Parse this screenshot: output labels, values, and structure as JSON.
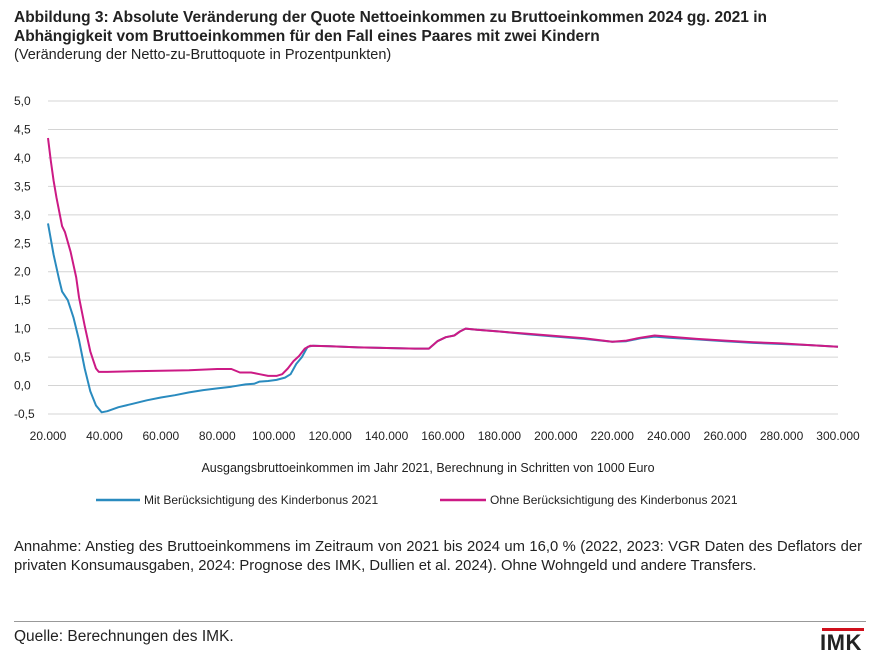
{
  "header": {
    "title": "Abbildung 3: Absolute Veränderung der Quote Nettoeinkommen zu Bruttoeinkommen 2024 gg. 2021 in Abhängigkeit vom Bruttoeinkommen für den Fall eines Paares mit zwei Kindern",
    "subtitle": "(Veränderung der Netto-zu-Bruttoquote in Prozentpunkten)"
  },
  "chart_data": {
    "type": "line",
    "xlabel": "Ausgangsbruttoeinkommen im Jahr 2021, Berechnung in Schritten von 1000 Euro",
    "ylabel": "",
    "xlim": [
      20000,
      300000
    ],
    "ylim": [
      -0.5,
      5.0
    ],
    "grid": "horizontal",
    "legend_position": "bottom",
    "x_ticks": [
      20000,
      40000,
      60000,
      80000,
      100000,
      120000,
      140000,
      160000,
      180000,
      200000,
      220000,
      240000,
      260000,
      280000,
      300000
    ],
    "x_tick_labels": [
      "20.000",
      "40.000",
      "60.000",
      "80.000",
      "100.000",
      "120.000",
      "140.000",
      "160.000",
      "180.000",
      "200.000",
      "220.000",
      "240.000",
      "260.000",
      "280.000",
      "300.000"
    ],
    "y_ticks": [
      -0.5,
      0.0,
      0.5,
      1.0,
      1.5,
      2.0,
      2.5,
      3.0,
      3.5,
      4.0,
      4.5,
      5.0
    ],
    "y_tick_labels": [
      "-0,5",
      "0,0",
      "0,5",
      "1,0",
      "1,5",
      "2,0",
      "2,5",
      "3,0",
      "3,5",
      "4,0",
      "4,5",
      "5,0"
    ],
    "series": [
      {
        "name": "Mit Berücksichtigung des Kinderbonus 2021",
        "color": "#2a8bbf",
        "points": [
          [
            20000,
            2.85
          ],
          [
            22000,
            2.3
          ],
          [
            24000,
            1.85
          ],
          [
            25000,
            1.65
          ],
          [
            27000,
            1.5
          ],
          [
            29000,
            1.2
          ],
          [
            31000,
            0.8
          ],
          [
            33000,
            0.3
          ],
          [
            35000,
            -0.1
          ],
          [
            37000,
            -0.35
          ],
          [
            39000,
            -0.47
          ],
          [
            41000,
            -0.45
          ],
          [
            45000,
            -0.38
          ],
          [
            50000,
            -0.32
          ],
          [
            55000,
            -0.26
          ],
          [
            60000,
            -0.21
          ],
          [
            65000,
            -0.17
          ],
          [
            70000,
            -0.12
          ],
          [
            75000,
            -0.08
          ],
          [
            80000,
            -0.05
          ],
          [
            85000,
            -0.02
          ],
          [
            90000,
            0.02
          ],
          [
            93000,
            0.03
          ],
          [
            95000,
            0.07
          ],
          [
            98000,
            0.08
          ],
          [
            101000,
            0.1
          ],
          [
            104000,
            0.14
          ],
          [
            106000,
            0.2
          ],
          [
            108000,
            0.38
          ],
          [
            110000,
            0.5
          ],
          [
            112000,
            0.68
          ],
          [
            114000,
            0.7
          ],
          [
            120000,
            0.69
          ],
          [
            130000,
            0.67
          ],
          [
            140000,
            0.66
          ],
          [
            150000,
            0.65
          ],
          [
            155000,
            0.65
          ],
          [
            158000,
            0.78
          ],
          [
            161000,
            0.85
          ],
          [
            164000,
            0.88
          ],
          [
            166000,
            0.95
          ],
          [
            168000,
            1.0
          ],
          [
            172000,
            0.98
          ],
          [
            180000,
            0.95
          ],
          [
            190000,
            0.9
          ],
          [
            200000,
            0.86
          ],
          [
            210000,
            0.82
          ],
          [
            220000,
            0.77
          ],
          [
            225000,
            0.78
          ],
          [
            230000,
            0.83
          ],
          [
            235000,
            0.86
          ],
          [
            240000,
            0.84
          ],
          [
            250000,
            0.81
          ],
          [
            260000,
            0.78
          ],
          [
            270000,
            0.75
          ],
          [
            280000,
            0.73
          ],
          [
            290000,
            0.71
          ],
          [
            300000,
            0.68
          ]
        ]
      },
      {
        "name": "Ohne Berücksichtigung des Kinderbonus 2021",
        "color": "#cc1a85",
        "points": [
          [
            20000,
            4.35
          ],
          [
            21000,
            3.95
          ],
          [
            22000,
            3.6
          ],
          [
            23000,
            3.3
          ],
          [
            25000,
            2.8
          ],
          [
            26000,
            2.7
          ],
          [
            28000,
            2.35
          ],
          [
            30000,
            1.9
          ],
          [
            31000,
            1.55
          ],
          [
            33000,
            1.05
          ],
          [
            35000,
            0.6
          ],
          [
            36000,
            0.45
          ],
          [
            37000,
            0.3
          ],
          [
            38000,
            0.24
          ],
          [
            41000,
            0.24
          ],
          [
            50000,
            0.25
          ],
          [
            60000,
            0.26
          ],
          [
            70000,
            0.27
          ],
          [
            80000,
            0.29
          ],
          [
            85000,
            0.29
          ],
          [
            88000,
            0.23
          ],
          [
            92000,
            0.23
          ],
          [
            95000,
            0.2
          ],
          [
            98000,
            0.17
          ],
          [
            101000,
            0.17
          ],
          [
            103000,
            0.2
          ],
          [
            105000,
            0.3
          ],
          [
            107000,
            0.43
          ],
          [
            109000,
            0.52
          ],
          [
            111000,
            0.65
          ],
          [
            113000,
            0.7
          ],
          [
            120000,
            0.69
          ],
          [
            130000,
            0.67
          ],
          [
            140000,
            0.66
          ],
          [
            150000,
            0.65
          ],
          [
            155000,
            0.65
          ],
          [
            158000,
            0.78
          ],
          [
            161000,
            0.85
          ],
          [
            164000,
            0.88
          ],
          [
            166000,
            0.95
          ],
          [
            168000,
            1.0
          ],
          [
            172000,
            0.98
          ],
          [
            180000,
            0.95
          ],
          [
            190000,
            0.91
          ],
          [
            200000,
            0.87
          ],
          [
            210000,
            0.83
          ],
          [
            220000,
            0.77
          ],
          [
            225000,
            0.79
          ],
          [
            230000,
            0.84
          ],
          [
            235000,
            0.88
          ],
          [
            240000,
            0.86
          ],
          [
            250000,
            0.82
          ],
          [
            260000,
            0.79
          ],
          [
            270000,
            0.76
          ],
          [
            280000,
            0.74
          ],
          [
            290000,
            0.71
          ],
          [
            300000,
            0.68
          ]
        ]
      }
    ]
  },
  "note": "Annahme: Anstieg des Bruttoeinkommens im Zeitraum von 2021 bis 2024 um 16,0 % (2022, 2023: VGR Daten des Deflators der privaten Konsumausgaben, 2024: Prognose des IMK, Dullien et al. 2024). Ohne Wohngeld und andere Transfers.",
  "source": "Quelle: Berechnungen des IMK.",
  "logo": {
    "text": "IMK",
    "accent_color": "#d0101c"
  }
}
